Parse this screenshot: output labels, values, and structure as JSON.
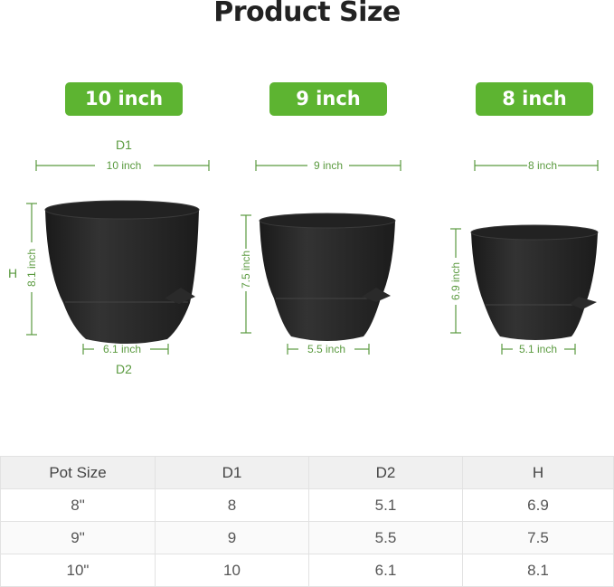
{
  "title": "Product Size",
  "accent_color": "#5db431",
  "dimension_color": "#5a9a3f",
  "labels": {
    "d1": "D1",
    "d2": "D2",
    "h": "H"
  },
  "pots": [
    {
      "badge": "10 inch",
      "d1": "10 inch",
      "d2": "6.1 inch",
      "h": "8.1 inch"
    },
    {
      "badge": "9 inch",
      "d1": "9 inch",
      "d2": "5.5 inch",
      "h": "7.5 inch"
    },
    {
      "badge": "8 inch",
      "d1": "8 inch",
      "d2": "5.1 inch",
      "h": "6.9 inch"
    }
  ],
  "table": {
    "headers": [
      "Pot Size",
      "D1",
      "D2",
      "H"
    ],
    "rows": [
      [
        "8\"",
        "8",
        "5.1",
        "6.9"
      ],
      [
        "9\"",
        "9",
        "5.5",
        "7.5"
      ],
      [
        "10\"",
        "10",
        "6.1",
        "8.1"
      ]
    ]
  }
}
